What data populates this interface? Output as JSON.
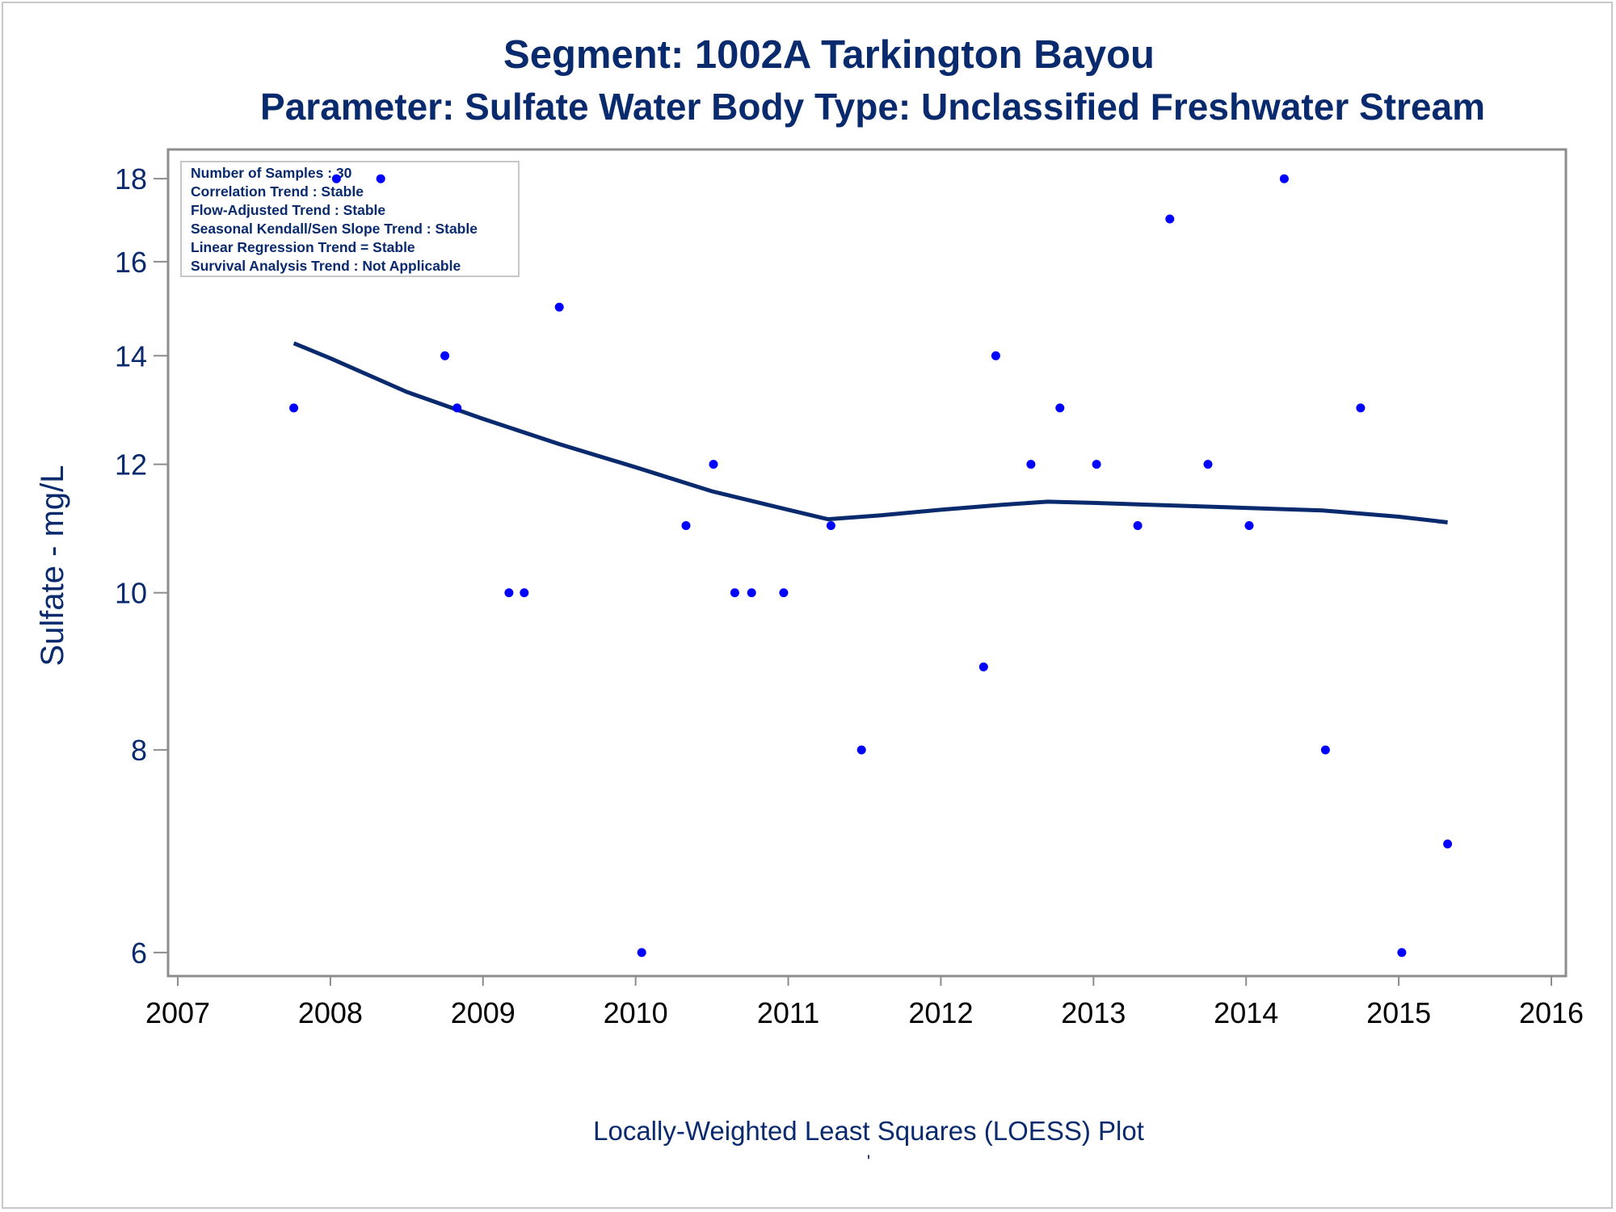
{
  "title": "Segment: 1002A  Tarkington Bayou",
  "subtitle": "Parameter: Sulfate   Water Body Type: Unclassified Freshwater Stream",
  "stats_box": {
    "lines": [
      "Number of Samples : 30",
      "Correlation Trend : Stable",
      "Flow-Adjusted Trend : Stable",
      "Seasonal Kendall/Sen Slope Trend : Stable",
      "Linear Regression Trend = Stable",
      "Survival Analysis Trend : Not Applicable"
    ]
  },
  "footer": {
    "caption": "Locally-Weighted Least Squares (LOESS) Plot",
    "mark": "'"
  },
  "colors": {
    "text": "#0a2a6e",
    "points": "#0000ff",
    "loess_line": "#0a2a6e",
    "axes": "#8c8c8c"
  },
  "chart_data": {
    "type": "scatter",
    "title": "Segment: 1002A  Tarkington Bayou",
    "subtitle": "Parameter: Sulfate   Water Body Type: Unclassified Freshwater Stream",
    "xlabel": "",
    "ylabel": "Sulfate - mg/L",
    "y_scale": "log",
    "xlim": [
      2007,
      2016
    ],
    "ylim": [
      5.87,
      18.4
    ],
    "x_ticks": [
      "2007",
      "2008",
      "2009",
      "2010",
      "2011",
      "2012",
      "2013",
      "2014",
      "2015",
      "2016"
    ],
    "y_ticks": [
      "6",
      "8",
      "10",
      "12",
      "14",
      "16",
      "18"
    ],
    "grid": false,
    "legend": "none",
    "series": [
      {
        "kind": "points",
        "points": [
          {
            "x": 2007.76,
            "y": 13
          },
          {
            "x": 2008.04,
            "y": 18
          },
          {
            "x": 2008.33,
            "y": 18
          },
          {
            "x": 2008.75,
            "y": 14
          },
          {
            "x": 2008.83,
            "y": 13
          },
          {
            "x": 2009.17,
            "y": 10
          },
          {
            "x": 2009.27,
            "y": 10
          },
          {
            "x": 2009.5,
            "y": 15
          },
          {
            "x": 2010.04,
            "y": 6
          },
          {
            "x": 2010.33,
            "y": 11
          },
          {
            "x": 2010.51,
            "y": 12
          },
          {
            "x": 2010.65,
            "y": 10
          },
          {
            "x": 2010.76,
            "y": 10
          },
          {
            "x": 2010.97,
            "y": 10
          },
          {
            "x": 2011.28,
            "y": 11
          },
          {
            "x": 2011.48,
            "y": 8
          },
          {
            "x": 2012.28,
            "y": 9
          },
          {
            "x": 2012.36,
            "y": 14
          },
          {
            "x": 2012.59,
            "y": 12
          },
          {
            "x": 2012.78,
            "y": 13
          },
          {
            "x": 2013.02,
            "y": 12
          },
          {
            "x": 2013.29,
            "y": 11
          },
          {
            "x": 2013.5,
            "y": 17
          },
          {
            "x": 2013.75,
            "y": 12
          },
          {
            "x": 2014.02,
            "y": 11
          },
          {
            "x": 2014.25,
            "y": 18
          },
          {
            "x": 2014.52,
            "y": 8
          },
          {
            "x": 2014.75,
            "y": 13
          },
          {
            "x": 2015.02,
            "y": 6
          },
          {
            "x": 2015.32,
            "y": 7
          }
        ]
      },
      {
        "kind": "loess",
        "points": [
          {
            "x": 2007.76,
            "y": 14.25
          },
          {
            "x": 2008.0,
            "y": 13.95
          },
          {
            "x": 2008.5,
            "y": 13.3
          },
          {
            "x": 2009.0,
            "y": 12.8
          },
          {
            "x": 2009.5,
            "y": 12.35
          },
          {
            "x": 2010.0,
            "y": 11.95
          },
          {
            "x": 2010.5,
            "y": 11.55
          },
          {
            "x": 2011.0,
            "y": 11.25
          },
          {
            "x": 2011.26,
            "y": 11.1
          },
          {
            "x": 2011.6,
            "y": 11.16
          },
          {
            "x": 2012.0,
            "y": 11.25
          },
          {
            "x": 2012.4,
            "y": 11.33
          },
          {
            "x": 2012.7,
            "y": 11.38
          },
          {
            "x": 2013.0,
            "y": 11.36
          },
          {
            "x": 2013.5,
            "y": 11.32
          },
          {
            "x": 2014.0,
            "y": 11.28
          },
          {
            "x": 2014.5,
            "y": 11.24
          },
          {
            "x": 2015.0,
            "y": 11.14
          },
          {
            "x": 2015.32,
            "y": 11.05
          }
        ]
      }
    ]
  }
}
